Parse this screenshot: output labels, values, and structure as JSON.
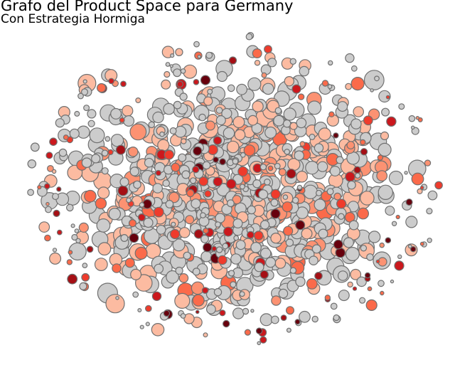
{
  "chart_data": {
    "type": "scatter",
    "title": "Grafo del Product Space para Germany",
    "subtitle": "Con Estrategia Hormiga",
    "xlabel": "",
    "ylabel": "",
    "axes_visible": false,
    "grid": false,
    "legend": "none",
    "edge_color": "#707070",
    "default_node_color": "#cccccc",
    "color_scale": [
      "#fcbba1",
      "#fc9272",
      "#fb6a4a",
      "#ef3b2c",
      "#cb181d",
      "#a50f15",
      "#67000d"
    ],
    "n_nodes": 1100,
    "colored_fraction": 0.45,
    "seed": 20240517
  }
}
